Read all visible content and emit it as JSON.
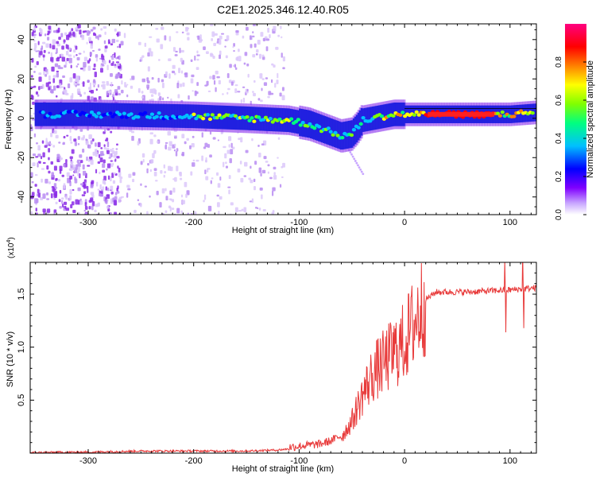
{
  "title": "C2E1.2025.346.12.40.R05",
  "chart_data": [
    {
      "type": "heatmap",
      "xlabel": "Height of straight line (km)",
      "ylabel": "Frequency (Hz)",
      "xlim": [
        -355,
        125
      ],
      "ylim": [
        -49,
        48
      ],
      "xticks": [
        -300,
        -200,
        -100,
        0,
        100
      ],
      "yticks": [
        -40,
        -20,
        0,
        20,
        40
      ],
      "colorbar": {
        "label": "Normalized spectral amplitude",
        "range": [
          0,
          1
        ],
        "ticks": [
          "0.0",
          "0.2",
          "0.4",
          "0.6",
          "0.8"
        ],
        "colors": [
          "#ffffff",
          "#c8a6ff",
          "#8000ff",
          "#0000ff",
          "#00c0ff",
          "#00ff80",
          "#80ff00",
          "#ffff00",
          "#ff8000",
          "#ff0000",
          "#ff0080"
        ]
      },
      "ridge": {
        "x": [
          -350,
          -300,
          -250,
          -200,
          -150,
          -110,
          -90,
          -70,
          -60,
          -50,
          -45,
          -40,
          -30,
          -20,
          -10,
          0,
          20,
          40,
          60,
          80,
          100,
          125
        ],
        "freq": [
          2,
          2,
          1.5,
          1,
          0,
          -1,
          -3,
          -7,
          -9,
          -8,
          -5,
          -1,
          0,
          1,
          2,
          2,
          2,
          2,
          2,
          2,
          2,
          3
        ]
      }
    },
    {
      "type": "line",
      "xlabel": "Height of straight line (km)",
      "ylabel": "SNR (10 * v/v)",
      "y_multiplier": "(x10",
      "y_multiplier_exp": "4",
      "y_multiplier_close": ")",
      "xlim": [
        -355,
        125
      ],
      "ylim": [
        0,
        1.8
      ],
      "xticks": [
        -300,
        -200,
        -100,
        0,
        100
      ],
      "yticks": [
        "0.5",
        "1.0",
        "1.5"
      ],
      "series": [
        {
          "name": "SNR",
          "color": "#e83a3a",
          "x": [
            -355,
            -300,
            -250,
            -200,
            -150,
            -120,
            -100,
            -80,
            -70,
            -60,
            -50,
            -40,
            -30,
            -20,
            -10,
            0,
            10,
            20,
            30,
            40,
            60,
            80,
            100,
            125
          ],
          "y": [
            0.005,
            0.01,
            0.02,
            0.02,
            0.02,
            0.03,
            0.05,
            0.07,
            0.1,
            0.15,
            0.3,
            0.55,
            0.75,
            0.85,
            0.95,
            1.05,
            1.25,
            1.45,
            1.52,
            1.52,
            1.52,
            1.53,
            1.54,
            1.56
          ]
        }
      ]
    }
  ]
}
